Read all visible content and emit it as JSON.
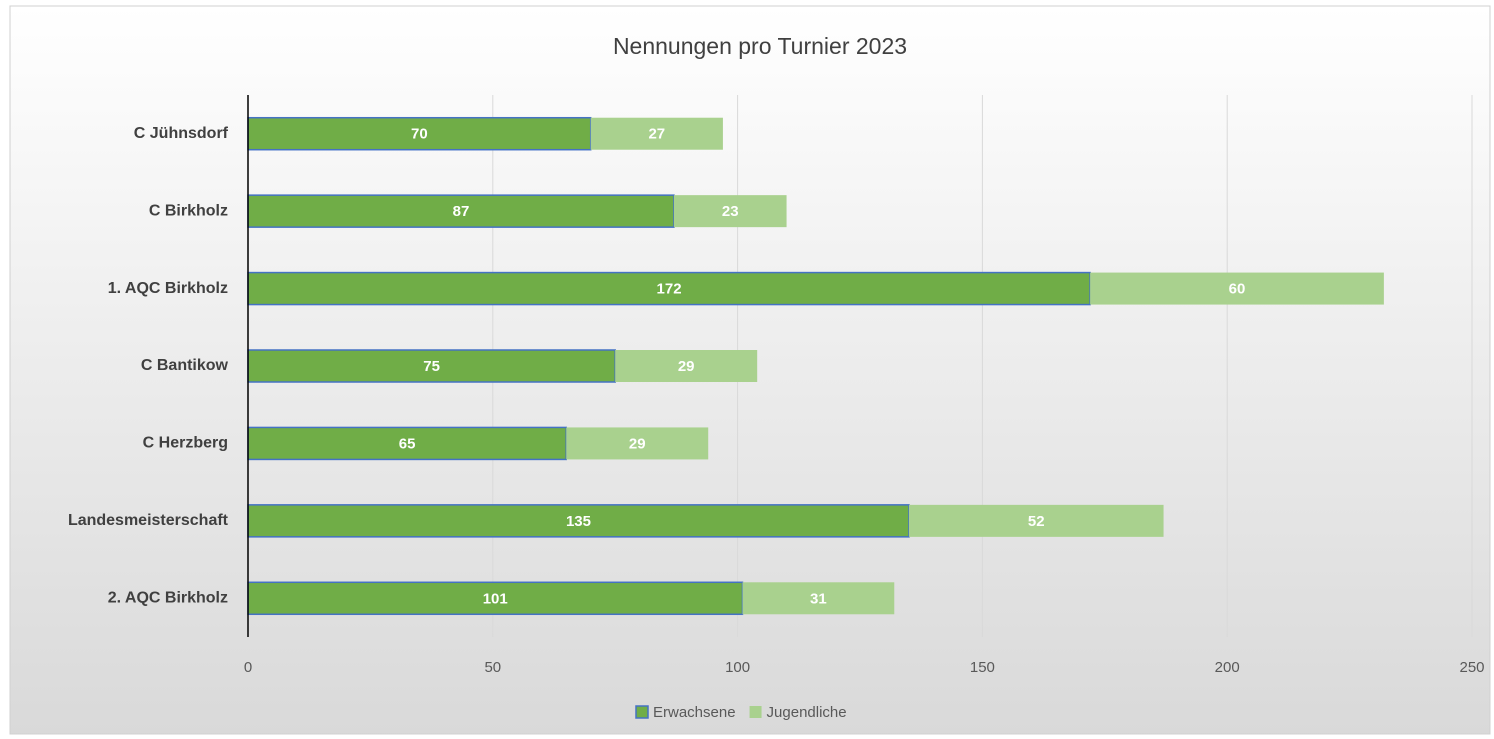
{
  "chart_data": {
    "type": "bar",
    "orientation": "horizontal",
    "stacked": true,
    "title": "Nennungen pro Turnier 2023",
    "categories": [
      "C Jühnsdorf",
      "C Birkholz",
      "1. AQC Birkholz",
      "C Bantikow",
      "C Herzberg",
      "Landesmeisterschaft",
      "2. AQC Birkholz"
    ],
    "series": [
      {
        "name": "Erwachsene",
        "color": "#70ad47",
        "values": [
          70,
          87,
          172,
          75,
          65,
          135,
          101
        ]
      },
      {
        "name": "Jugendliche",
        "color": "#a9d18e",
        "values": [
          27,
          23,
          60,
          29,
          29,
          52,
          31
        ]
      }
    ],
    "xlim": [
      0,
      250
    ],
    "xticks": [
      0,
      50,
      100,
      150,
      200,
      250
    ],
    "grid": true,
    "legend": "bottom"
  }
}
